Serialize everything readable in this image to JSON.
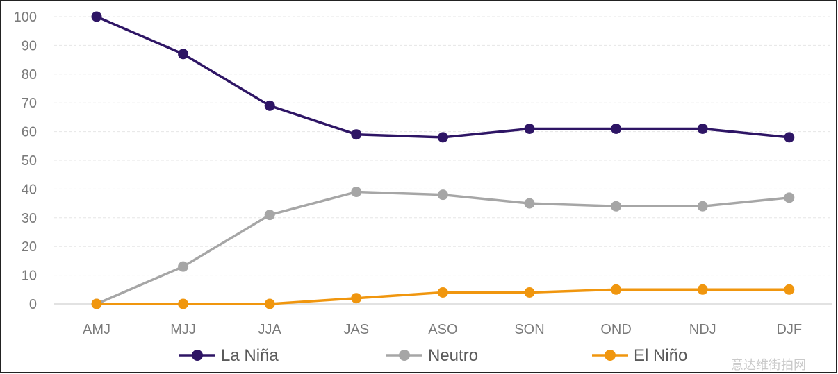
{
  "chart_data": {
    "type": "line",
    "categories": [
      "AMJ",
      "MJJ",
      "JJA",
      "JAS",
      "ASO",
      "SON",
      "OND",
      "NDJ",
      "DJF"
    ],
    "ylim": [
      0,
      100
    ],
    "yticks": [
      0,
      10,
      20,
      30,
      40,
      50,
      60,
      70,
      80,
      90,
      100
    ],
    "grid": true,
    "legend_position": "bottom",
    "series": [
      {
        "name": "La Niña",
        "color": "#2e1565",
        "values": [
          100,
          87,
          69,
          59,
          58,
          61,
          61,
          61,
          58
        ]
      },
      {
        "name": "Neutro",
        "color": "#a6a6a6",
        "values": [
          0,
          13,
          31,
          39,
          38,
          35,
          34,
          34,
          37
        ]
      },
      {
        "name": "El Niño",
        "color": "#f0960e",
        "values": [
          0,
          0,
          0,
          2,
          4,
          4,
          5,
          5,
          5
        ]
      }
    ]
  },
  "watermark": "意达维街拍网"
}
